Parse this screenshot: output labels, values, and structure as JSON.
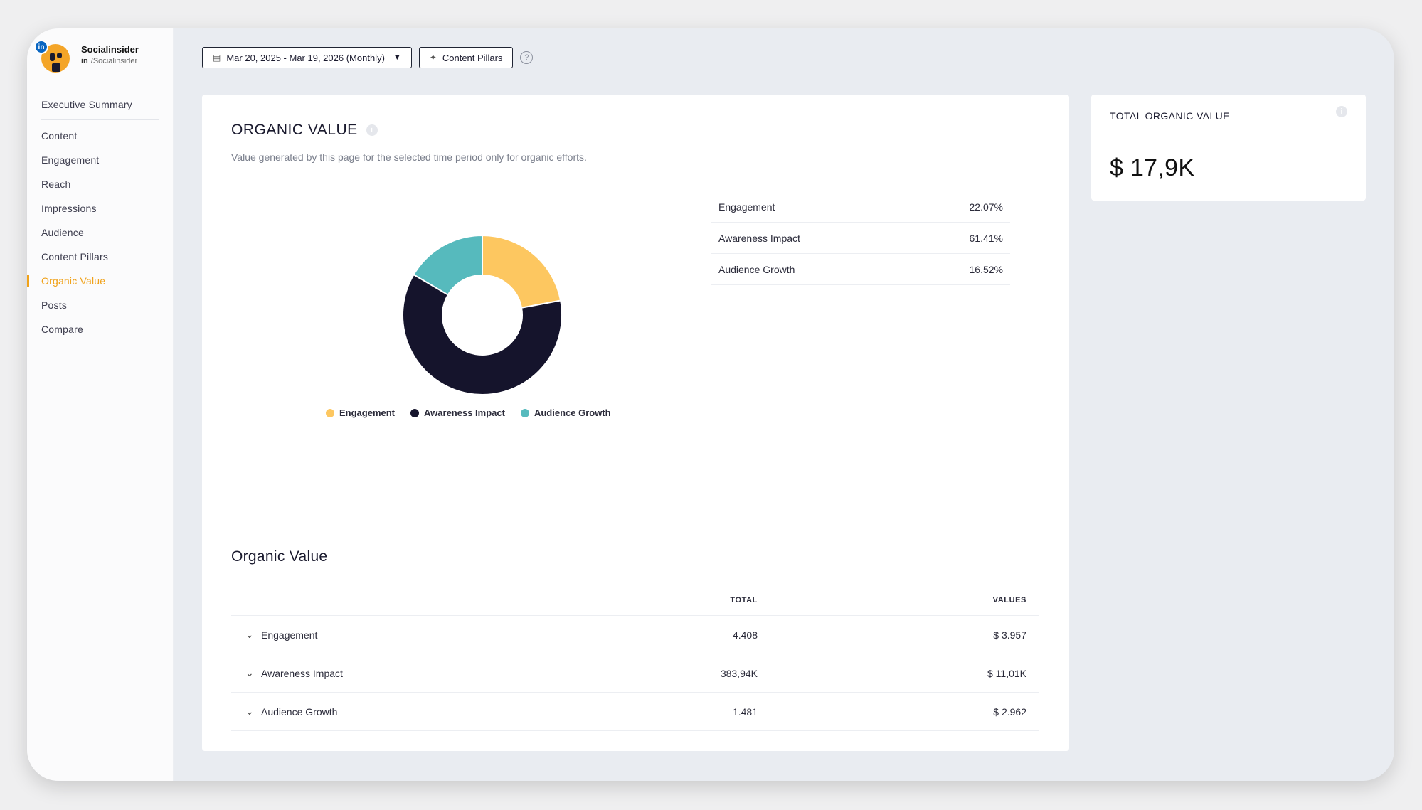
{
  "brand": {
    "name": "Socialinsider",
    "handle": "/Socialinsider",
    "network_badge": "in",
    "handle_prefix": "in"
  },
  "nav": {
    "items": [
      {
        "label": "Executive Summary"
      },
      {
        "label": "Content"
      },
      {
        "label": "Engagement"
      },
      {
        "label": "Reach"
      },
      {
        "label": "Impressions"
      },
      {
        "label": "Audience"
      },
      {
        "label": "Content Pillars"
      },
      {
        "label": "Organic Value",
        "active": true
      },
      {
        "label": "Posts"
      },
      {
        "label": "Compare"
      }
    ]
  },
  "toolbar": {
    "date_range": "Mar 20, 2025 - Mar 19, 2026 (Monthly)",
    "content_pillars_label": "Content Pillars",
    "help": "?"
  },
  "organic_value_card": {
    "title": "ORGANIC VALUE",
    "subtitle": "Value generated by this page for the selected time period only for organic efforts.",
    "info": "i",
    "breakdown": [
      {
        "label": "Engagement",
        "percent": "22.07%"
      },
      {
        "label": "Awareness Impact",
        "percent": "61.41%"
      },
      {
        "label": "Audience Growth",
        "percent": "16.52%"
      }
    ]
  },
  "chart_data": {
    "type": "pie",
    "donut": true,
    "categories": [
      "Engagement",
      "Awareness Impact",
      "Audience Growth"
    ],
    "values": [
      22.07,
      61.41,
      16.52
    ],
    "colors": [
      "#fdc760",
      "#15142c",
      "#56babd"
    ],
    "legend_position": "bottom"
  },
  "table": {
    "title": "Organic Value",
    "headers": {
      "total": "TOTAL",
      "values": "VALUES"
    },
    "rows": [
      {
        "name": "Engagement",
        "total": "4.408",
        "value": "$ 3.957"
      },
      {
        "name": "Awareness Impact",
        "total": "383,94K",
        "value": "$ 11,01K"
      },
      {
        "name": "Audience Growth",
        "total": "1.481",
        "value": "$ 2.962"
      }
    ]
  },
  "total_card": {
    "title": "TOTAL ORGANIC VALUE",
    "value": "$ 17,9K",
    "info": "i"
  }
}
